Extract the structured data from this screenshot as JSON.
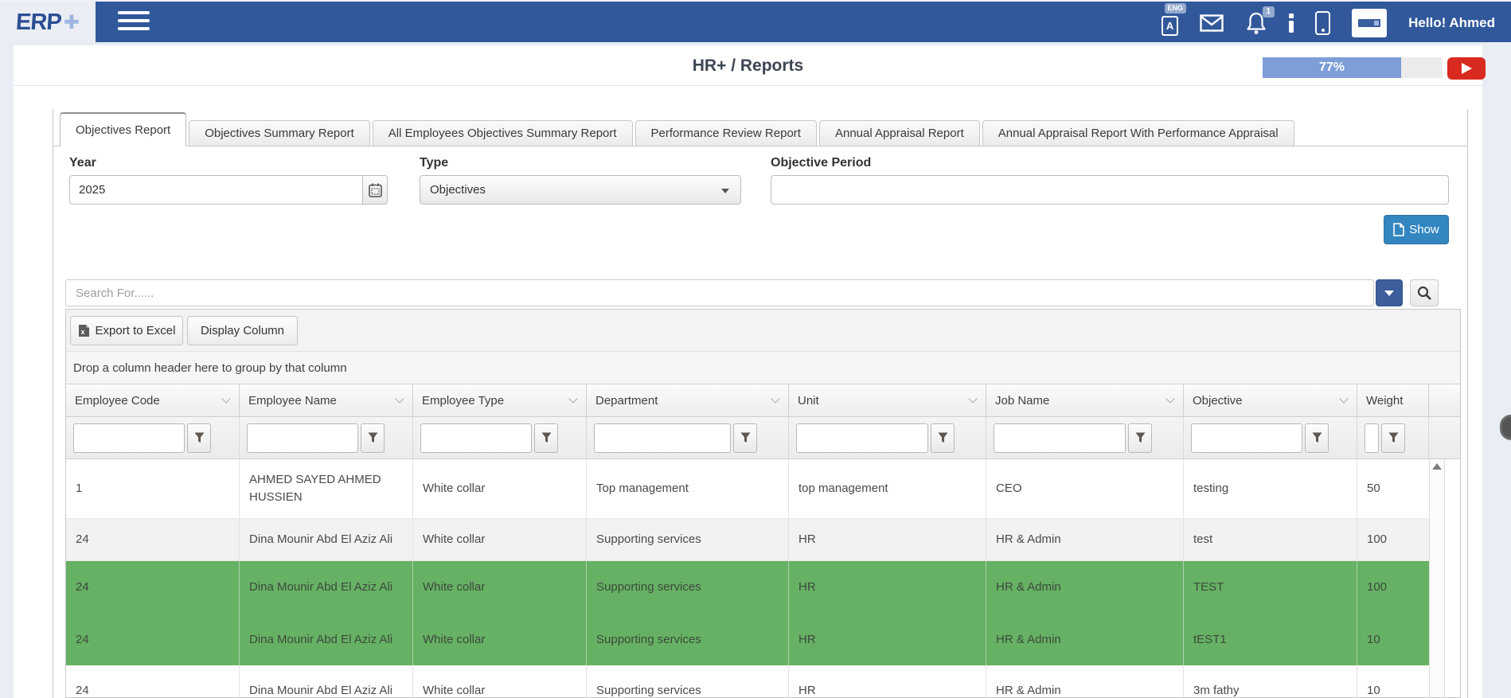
{
  "navbar": {
    "logo_text": "ERP",
    "language_badge": "ENG",
    "language_letter": "A",
    "notification_count": "1",
    "greeting": "Hello! Ahmed"
  },
  "header": {
    "title": "HR+ / Reports",
    "progress_label": "77%",
    "progress_value": 77
  },
  "tabs": [
    {
      "label": "Objectives Report",
      "active": true
    },
    {
      "label": "Objectives Summary Report",
      "active": false
    },
    {
      "label": "All Employees Objectives Summary Report",
      "active": false
    },
    {
      "label": "Performance Review Report",
      "active": false
    },
    {
      "label": "Annual Appraisal Report",
      "active": false
    },
    {
      "label": "Annual Appraisal Report With Performance Appraisal",
      "active": false
    }
  ],
  "filters": {
    "year_label": "Year",
    "year_value": "2025",
    "type_label": "Type",
    "type_value": "Objectives",
    "objective_period_label": "Objective Period",
    "objective_period_value": "",
    "show_button": "Show"
  },
  "search": {
    "placeholder": "Search For......"
  },
  "toolbar": {
    "export_excel": "Export to Excel",
    "display_column": "Display Column"
  },
  "grid": {
    "group_hint": "Drop a column header here to group by that column",
    "columns": [
      "Employee Code",
      "Employee Name",
      "Employee Type",
      "Department",
      "Unit",
      "Job Name",
      "Objective",
      "Weight"
    ],
    "rows": [
      {
        "highlight": false,
        "cells": [
          "1",
          "AHMED SAYED AHMED HUSSIEN",
          "White collar",
          "Top management",
          "top management",
          "CEO",
          "testing",
          "50"
        ]
      },
      {
        "highlight": false,
        "cells": [
          "24",
          "Dina Mounir Abd El Aziz Ali",
          "White collar",
          "Supporting services",
          "HR",
          "HR & Admin",
          "test",
          "100"
        ]
      },
      {
        "highlight": true,
        "cells": [
          "24",
          "Dina Mounir Abd El Aziz Ali",
          "White collar",
          "Supporting services",
          "HR",
          "HR & Admin",
          "TEST",
          "100"
        ]
      },
      {
        "highlight": true,
        "cells": [
          "24",
          "Dina Mounir Abd El Aziz Ali",
          "White collar",
          "Supporting services",
          "HR",
          "HR & Admin",
          "tEST1",
          "10"
        ]
      },
      {
        "highlight": false,
        "cells": [
          "24",
          "Dina Mounir Abd El Aziz Ali",
          "White collar",
          "Supporting services",
          "HR",
          "HR & Admin",
          "3m fathy",
          "10"
        ]
      }
    ]
  },
  "colors": {
    "navbar": "#31589b",
    "accent_blue": "#3386c0",
    "row_highlight_green": "#66b164",
    "progress_fill": "#7d9ed6",
    "play_button_red": "#d92a20"
  }
}
